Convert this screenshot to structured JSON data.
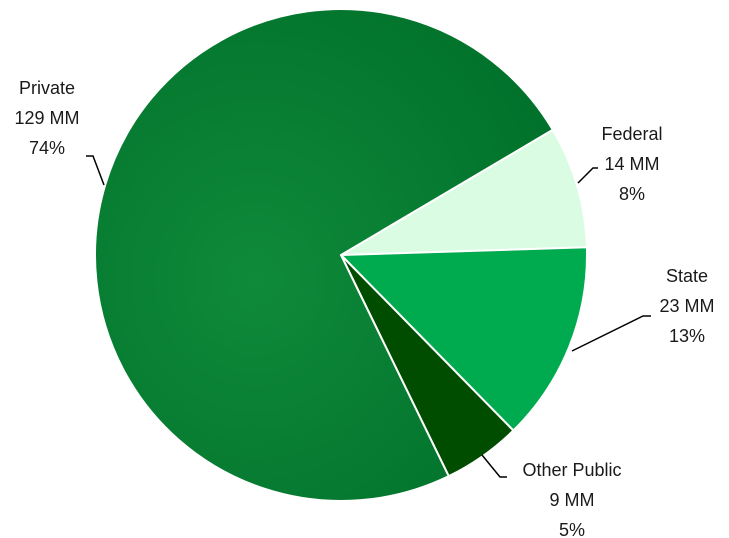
{
  "chart_data": {
    "type": "pie",
    "slices": [
      {
        "name": "Federal",
        "value": 14,
        "value_label": "14 MM",
        "percent_label": "8%",
        "color": "#d9fce3"
      },
      {
        "name": "State",
        "value": 23,
        "value_label": "23 MM",
        "percent_label": "13%",
        "color": "#00ab4f"
      },
      {
        "name": "Other Public",
        "value": 9,
        "value_label": "9 MM",
        "percent_label": "5%",
        "color": "#004d00"
      },
      {
        "name": "Private",
        "value": 129,
        "value_label": "129 MM",
        "percent_label": "74%",
        "color": "#0e7a33"
      }
    ]
  }
}
